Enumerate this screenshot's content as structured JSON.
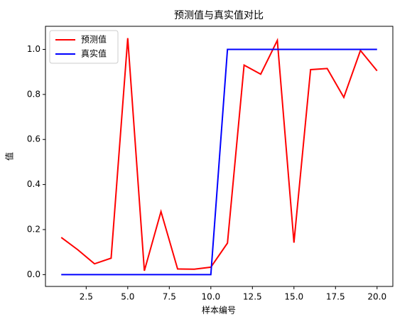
{
  "chart_data": {
    "type": "line",
    "title": "预测值与真实值对比",
    "xlabel": "样本编号",
    "ylabel": "值",
    "x": [
      1,
      2,
      3,
      4,
      5,
      6,
      7,
      8,
      9,
      10,
      11,
      12,
      13,
      14,
      15,
      16,
      17,
      18,
      19,
      20
    ],
    "series": [
      {
        "name": "预测值",
        "color": "#ff0000",
        "values": [
          0.165,
          0.11,
          0.048,
          0.073,
          1.05,
          0.017,
          0.28,
          0.025,
          0.024,
          0.033,
          0.14,
          0.93,
          0.89,
          1.04,
          0.142,
          0.91,
          0.915,
          0.787,
          0.995,
          0.905
        ]
      },
      {
        "name": "真实值",
        "color": "#0000ff",
        "values": [
          0,
          0,
          0,
          0,
          0,
          0,
          0,
          0,
          0,
          0,
          1,
          1,
          1,
          1,
          1,
          1,
          1,
          1,
          1,
          1
        ]
      }
    ],
    "xlim": [
      0.05,
      20.95
    ],
    "xticks": [
      {
        "value": 2.5,
        "label": "2.5"
      },
      {
        "value": 5,
        "label": "5.0"
      },
      {
        "value": 7.5,
        "label": "7.5"
      },
      {
        "value": 10,
        "label": "10.0"
      },
      {
        "value": 12.5,
        "label": "12.5"
      },
      {
        "value": 15,
        "label": "15.0"
      },
      {
        "value": 17.5,
        "label": "17.5"
      },
      {
        "value": 20,
        "label": "20.0"
      }
    ],
    "ylim": [
      -0.0525,
      1.1025
    ],
    "yticks": [
      {
        "value": 0,
        "label": "0.0"
      },
      0.2,
      0.4,
      0.6,
      0.8,
      {
        "value": 1,
        "label": "1.0"
      }
    ],
    "grid": false,
    "legend": "upper left"
  }
}
